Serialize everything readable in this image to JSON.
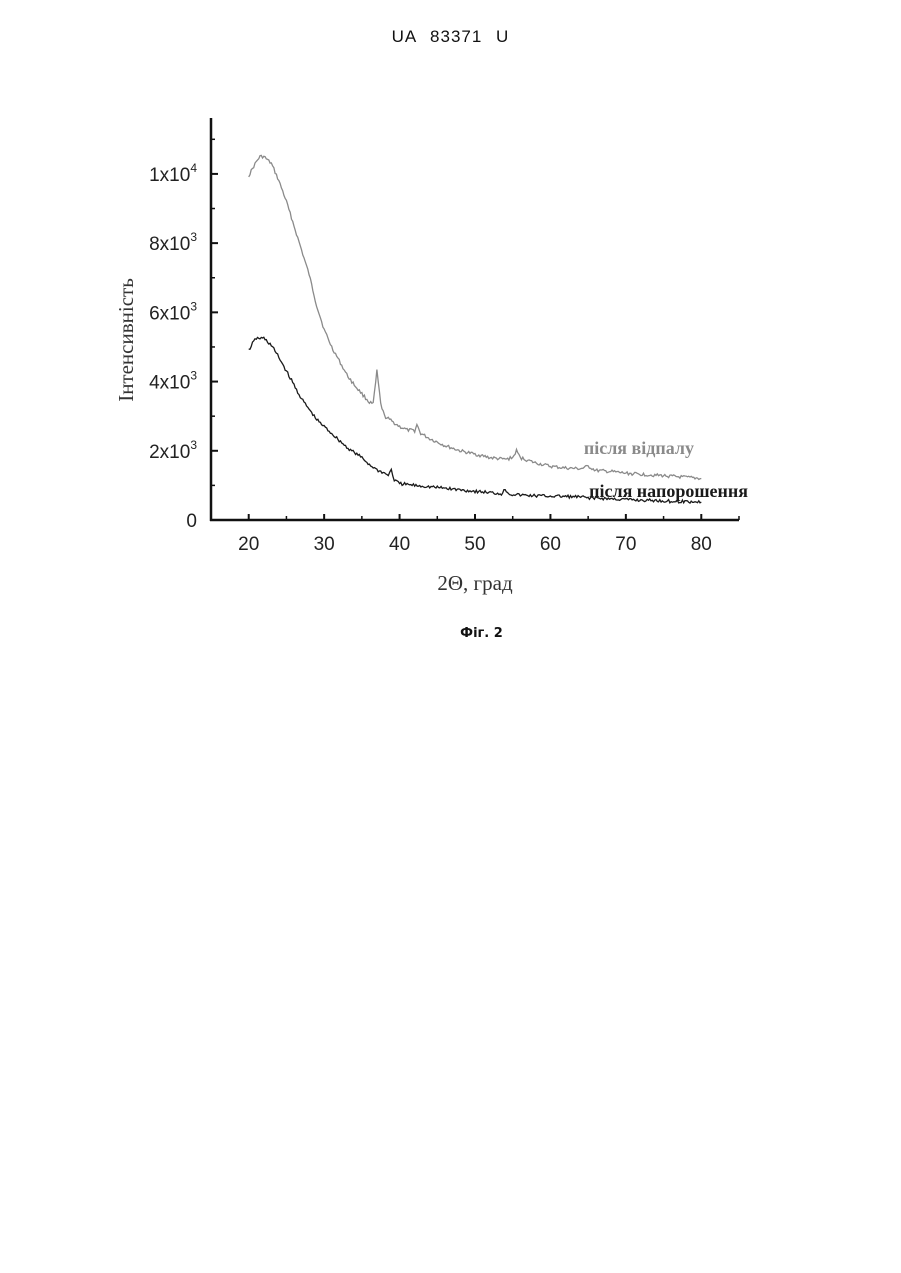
{
  "header": {
    "doc_id": "UA   83371   U"
  },
  "caption": "Фіг. 2",
  "chart_data": {
    "type": "line",
    "title": "",
    "xlabel": "2Θ, град",
    "ylabel": "Інтенсивність",
    "xlim": [
      15,
      85
    ],
    "ylim": [
      0,
      11500
    ],
    "x_ticks": [
      20,
      30,
      40,
      50,
      60,
      70,
      80
    ],
    "x_tick_labels": [
      "20",
      "30",
      "40",
      "50",
      "60",
      "70",
      "80"
    ],
    "y_ticks": [
      0,
      2000,
      4000,
      6000,
      8000,
      10000
    ],
    "y_tick_labels": [
      {
        "base": "0",
        "exp": ""
      },
      {
        "base": "2x10",
        "exp": "3"
      },
      {
        "base": "4x10",
        "exp": "3"
      },
      {
        "base": "6x10",
        "exp": "3"
      },
      {
        "base": "8x10",
        "exp": "3"
      },
      {
        "base": "1x10",
        "exp": "4"
      }
    ],
    "grid": false,
    "series": [
      {
        "name": "після відпалу",
        "color": "#8a8a8a",
        "points": [
          [
            20,
            9950
          ],
          [
            21,
            10350
          ],
          [
            21.5,
            10500
          ],
          [
            22,
            10500
          ],
          [
            23,
            10300
          ],
          [
            24,
            9800
          ],
          [
            25,
            9200
          ],
          [
            26,
            8500
          ],
          [
            27,
            7800
          ],
          [
            28,
            7100
          ],
          [
            29,
            6200
          ],
          [
            30,
            5500
          ],
          [
            31,
            5000
          ],
          [
            32,
            4600
          ],
          [
            33,
            4200
          ],
          [
            34,
            3900
          ],
          [
            35,
            3650
          ],
          [
            36,
            3400
          ],
          [
            36.5,
            3350
          ],
          [
            37,
            4300
          ],
          [
            37.5,
            3350
          ],
          [
            38,
            3000
          ],
          [
            39,
            2850
          ],
          [
            40,
            2700
          ],
          [
            41,
            2600
          ],
          [
            42,
            2580
          ],
          [
            42.3,
            2750
          ],
          [
            42.8,
            2500
          ],
          [
            44,
            2350
          ],
          [
            46,
            2150
          ],
          [
            48,
            2000
          ],
          [
            50,
            1900
          ],
          [
            52,
            1800
          ],
          [
            54,
            1750
          ],
          [
            55,
            1800
          ],
          [
            55.5,
            2000
          ],
          [
            56,
            1800
          ],
          [
            58,
            1650
          ],
          [
            60,
            1550
          ],
          [
            62,
            1500
          ],
          [
            64,
            1480
          ],
          [
            65,
            1550
          ],
          [
            66,
            1430
          ],
          [
            68,
            1400
          ],
          [
            70,
            1350
          ],
          [
            72,
            1320
          ],
          [
            75,
            1280
          ],
          [
            78,
            1230
          ],
          [
            80,
            1200
          ]
        ]
      },
      {
        "name": "після напорошення",
        "color": "#1a1a1a",
        "points": [
          [
            20,
            4900
          ],
          [
            20.5,
            5100
          ],
          [
            21,
            5250
          ],
          [
            22,
            5250
          ],
          [
            23,
            5050
          ],
          [
            24,
            4700
          ],
          [
            25,
            4300
          ],
          [
            26,
            3900
          ],
          [
            27,
            3500
          ],
          [
            28,
            3200
          ],
          [
            29,
            2900
          ],
          [
            30,
            2700
          ],
          [
            31,
            2500
          ],
          [
            32,
            2300
          ],
          [
            33,
            2100
          ],
          [
            34,
            1950
          ],
          [
            35,
            1800
          ],
          [
            36,
            1600
          ],
          [
            37,
            1450
          ],
          [
            38,
            1350
          ],
          [
            38.5,
            1300
          ],
          [
            38.9,
            1450
          ],
          [
            39.3,
            1150
          ],
          [
            40,
            1050
          ],
          [
            42,
            1000
          ],
          [
            44,
            960
          ],
          [
            46,
            920
          ],
          [
            48,
            870
          ],
          [
            50,
            830
          ],
          [
            52,
            790
          ],
          [
            53.5,
            760
          ],
          [
            54,
            880
          ],
          [
            54.6,
            750
          ],
          [
            56,
            720
          ],
          [
            58,
            700
          ],
          [
            60,
            690
          ],
          [
            62,
            680
          ],
          [
            64,
            660
          ],
          [
            66,
            630
          ],
          [
            68,
            610
          ],
          [
            70,
            590
          ],
          [
            72,
            570
          ],
          [
            74,
            560
          ],
          [
            76,
            540
          ],
          [
            78,
            530
          ],
          [
            80,
            520
          ]
        ]
      }
    ]
  }
}
